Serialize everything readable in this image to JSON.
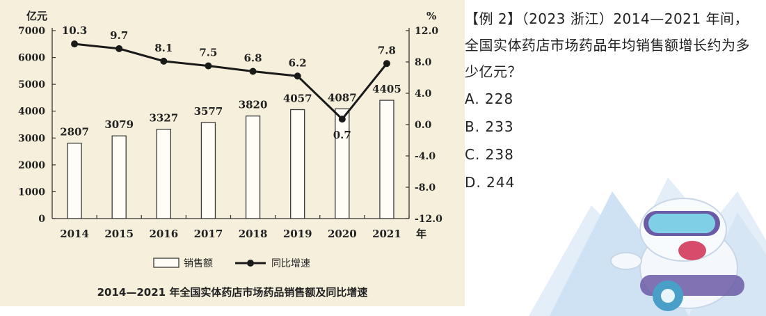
{
  "chart_data": {
    "type": "bar+line",
    "title": "2014—2021 年全国实体药店市场药品销售额及同比增速",
    "categories": [
      "2014",
      "2015",
      "2016",
      "2017",
      "2018",
      "2019",
      "2020",
      "2021"
    ],
    "x_unit": "年",
    "left_axis": {
      "unit": "亿元",
      "range": [
        0,
        7000
      ],
      "ticks": [
        "0",
        "1000",
        "2000",
        "3000",
        "4000",
        "5000",
        "6000",
        "7000"
      ]
    },
    "right_axis": {
      "unit": "%",
      "range": [
        -12,
        12
      ],
      "ticks": [
        "-12.0",
        "-8.0",
        "-4.0",
        "0.0",
        "4.0",
        "8.0",
        "12.0"
      ]
    },
    "series": [
      {
        "name": "销售额",
        "kind": "bar",
        "axis": "left",
        "values": [
          2807,
          3079,
          3327,
          3577,
          3820,
          4057,
          4087,
          4405
        ],
        "labels": [
          "2807",
          "3079",
          "3327",
          "3577",
          "3820",
          "4057",
          "4087",
          "4405"
        ]
      },
      {
        "name": "同比增速",
        "kind": "line",
        "axis": "right",
        "values": [
          10.3,
          9.7,
          8.1,
          7.5,
          6.8,
          6.2,
          0.7,
          7.8
        ],
        "labels": [
          "10.3",
          "9.7",
          "8.1",
          "7.5",
          "6.8",
          "6.2",
          "0.7",
          "7.8"
        ]
      }
    ],
    "grid": false,
    "legend_position": "bottom"
  },
  "question": {
    "text": "【例 2】（2023 浙江）2014—2021 年间，全国实体药店市场药品年均销售额增长约为多少亿元？",
    "options": [
      "A. 228",
      "B. 233",
      "C. 238",
      "D. 244"
    ]
  },
  "colors": {
    "chart_background": "#f6efdc",
    "bar_fill": "#fffdf6",
    "line": "#1a1a1a"
  },
  "decoration": {
    "mascot": "snow-mascot-with-goggles"
  }
}
